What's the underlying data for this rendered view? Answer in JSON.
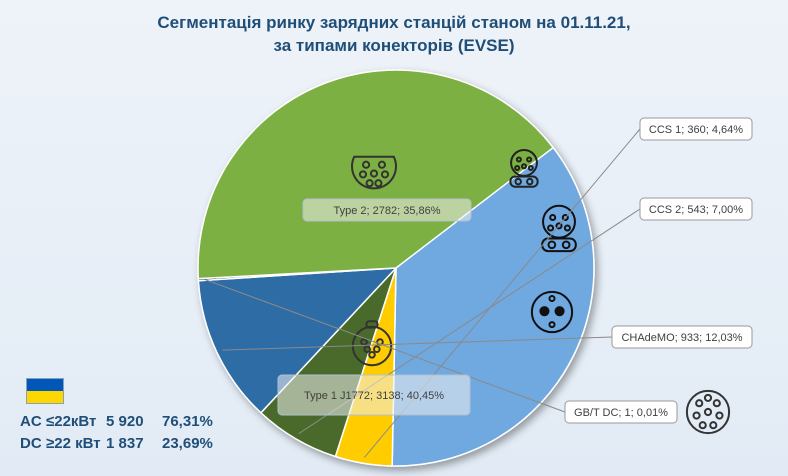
{
  "title": {
    "line1": "Сегментація ринку зарядних станцій станом на 01.11.21,",
    "line2": "за типами конекторів (EVSE)"
  },
  "summary": {
    "ac": {
      "label": "AC",
      "range": "≤22кВт",
      "count": "5 920",
      "share": "76,31%"
    },
    "dc": {
      "label": "DC",
      "range": "≥22 кВт",
      "count": "1 837",
      "share": "23,69%"
    }
  },
  "colors": {
    "type2": "#6fa8e0",
    "ccs1": "#ffcc00",
    "ccs2": "#4a6b2a",
    "chademo": "#2e6ca6",
    "gbt": "#1f3f6b",
    "type1": "#7bb043",
    "title": "#1f4e79",
    "flag_blue": "#0057b7",
    "flag_yellow": "#ffd700"
  },
  "chart_data": {
    "type": "pie",
    "title": "Сегментація ринку зарядних станцій станом на 01.11.21, за типами конекторів (EVSE)",
    "slices": [
      {
        "name": "Type 2",
        "value": 2782,
        "percent": 35.86,
        "label": "Type 2; 2782; 35,86%",
        "color": "#6fa8e0",
        "icon": "type2-connector-icon"
      },
      {
        "name": "CCS 1",
        "value": 360,
        "percent": 4.64,
        "label": "CCS 1; 360; 4,64%",
        "color": "#ffcc00",
        "icon": "ccs1-connector-icon"
      },
      {
        "name": "CCS 2",
        "value": 543,
        "percent": 7.0,
        "label": "CCS 2; 543; 7,00%",
        "color": "#4a6b2a",
        "icon": "ccs2-connector-icon"
      },
      {
        "name": "CHAdeMO",
        "value": 933,
        "percent": 12.03,
        "label": "CHAdeMO; 933; 12,03%",
        "color": "#2e6ca6",
        "icon": "chademo-connector-icon"
      },
      {
        "name": "GB/T DC",
        "value": 1,
        "percent": 0.01,
        "label": "GB/T DC; 1; 0,01%",
        "color": "#1f3f6b",
        "icon": "gbt-connector-icon"
      },
      {
        "name": "Type 1 J1772",
        "value": 3138,
        "percent": 40.45,
        "label": "Type 1  J1772; 3138; 40,45%",
        "color": "#7bb043",
        "icon": "type1-connector-icon"
      }
    ]
  }
}
